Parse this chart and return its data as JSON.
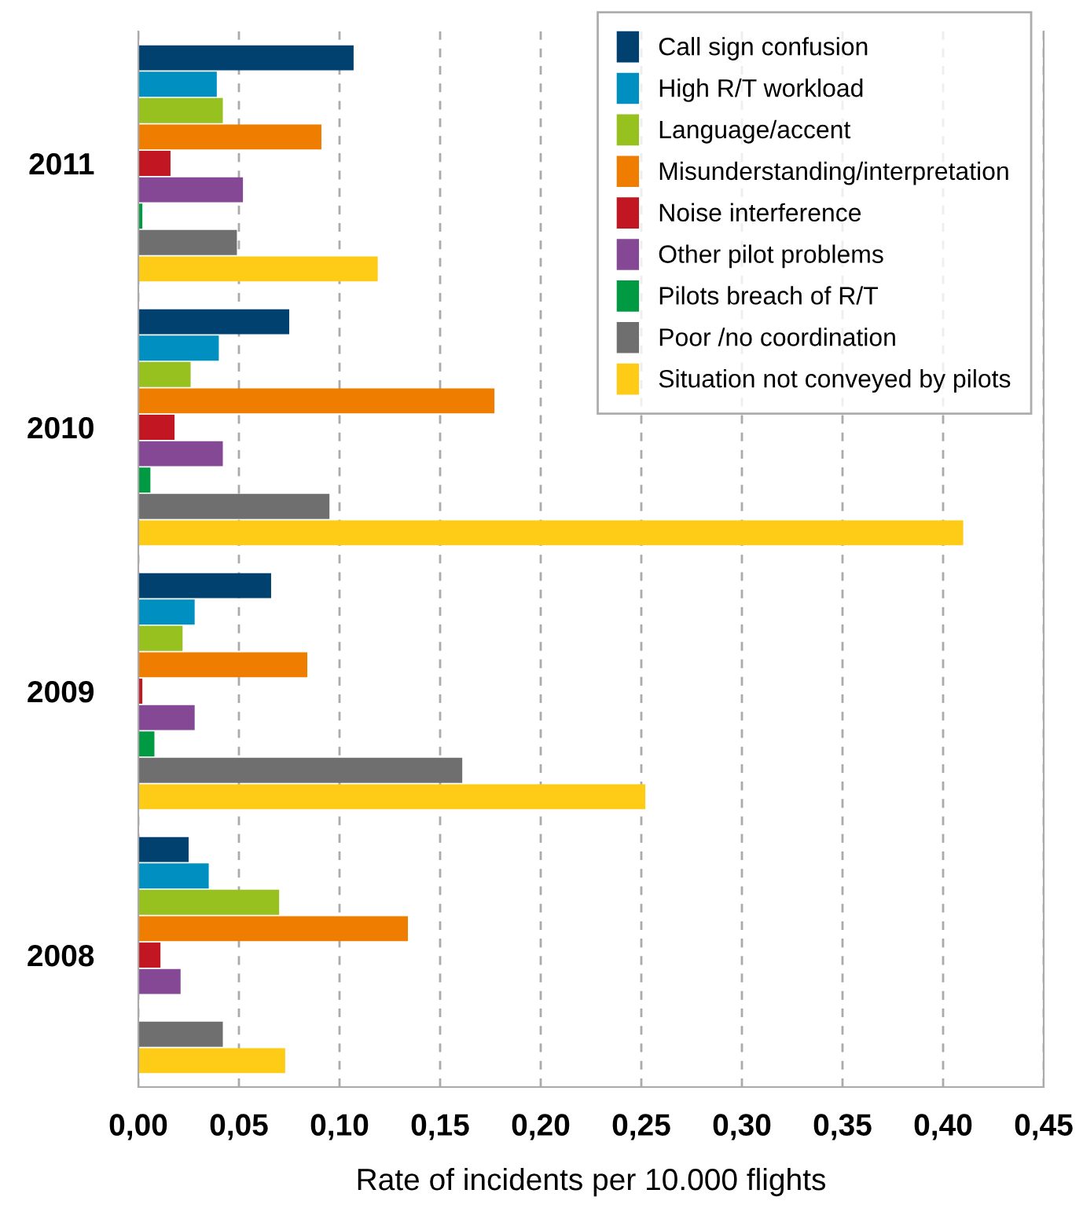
{
  "chart_data": {
    "type": "bar",
    "orientation": "horizontal",
    "xlabel": "Rate of incidents per 10.000 flights",
    "categories": [
      "2011",
      "2010",
      "2009",
      "2008"
    ],
    "series": [
      {
        "name": "Call sign confusion",
        "color": "#004170",
        "values": [
          0.107,
          0.075,
          0.066,
          0.025
        ]
      },
      {
        "name": "High R/T workload",
        "color": "#008fc1",
        "values": [
          0.039,
          0.04,
          0.028,
          0.035
        ]
      },
      {
        "name": "Language/accent",
        "color": "#97c11f",
        "values": [
          0.042,
          0.026,
          0.022,
          0.07
        ]
      },
      {
        "name": "Misunderstanding/interpretation",
        "color": "#ef7d00",
        "values": [
          0.091,
          0.177,
          0.084,
          0.134
        ]
      },
      {
        "name": "Noise interference",
        "color": "#c21722",
        "values": [
          0.016,
          0.018,
          0.002,
          0.011
        ]
      },
      {
        "name": "Other pilot problems",
        "color": "#844894",
        "values": [
          0.052,
          0.042,
          0.028,
          0.021
        ]
      },
      {
        "name": "Pilots breach of R/T",
        "color": "#009a42",
        "values": [
          0.002,
          0.006,
          0.008,
          0.0
        ]
      },
      {
        "name": "Poor /no coordination",
        "color": "#706f6f",
        "values": [
          0.049,
          0.095,
          0.161,
          0.042
        ]
      },
      {
        "name": "Situation not conveyed by pilots",
        "color": "#fecc17",
        "values": [
          0.119,
          0.41,
          0.252,
          0.073
        ]
      }
    ],
    "xlim": [
      0,
      0.45
    ],
    "xticks": [
      {
        "value": 0,
        "label": "0,00"
      },
      {
        "value": 0.05,
        "label": "0,05"
      },
      {
        "value": 0.1,
        "label": "0,10"
      },
      {
        "value": 0.15,
        "label": "0,15"
      },
      {
        "value": 0.2,
        "label": "0,20"
      },
      {
        "value": 0.25,
        "label": "0,25"
      },
      {
        "value": 0.3,
        "label": "0,30"
      },
      {
        "value": 0.35,
        "label": "0,35"
      },
      {
        "value": 0.4,
        "label": "0,40"
      },
      {
        "value": 0.45,
        "label": "0,45"
      }
    ],
    "grid": "x",
    "legend": "top right"
  }
}
